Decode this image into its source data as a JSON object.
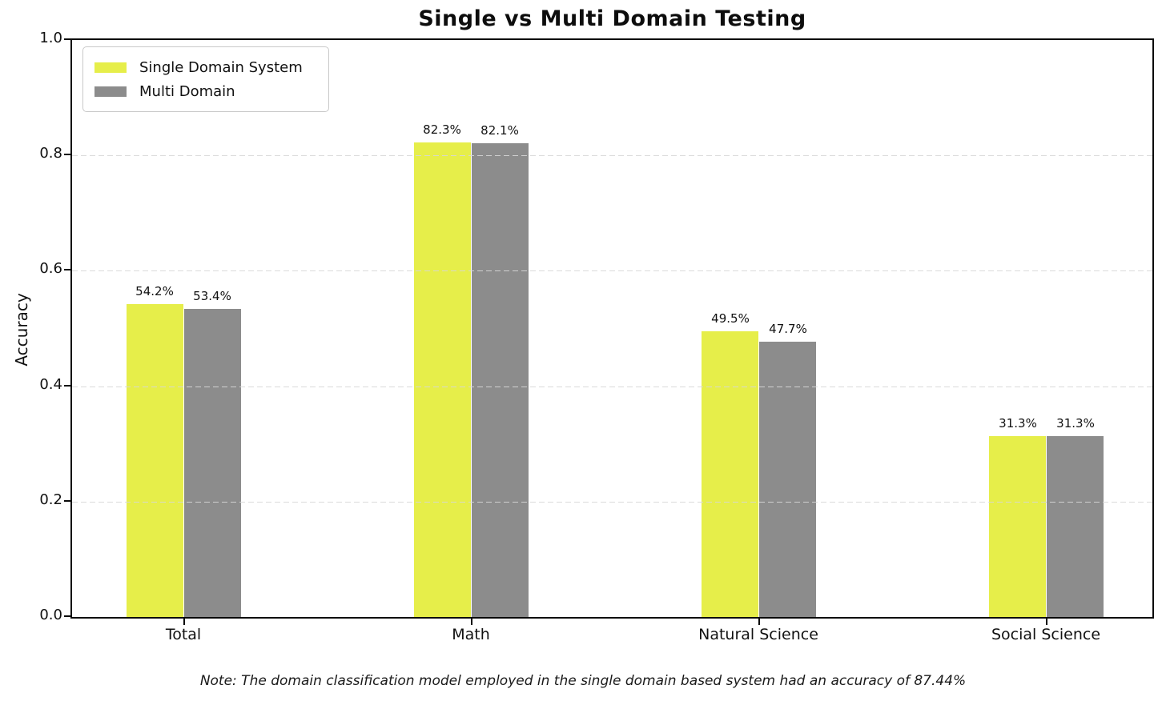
{
  "chart_data": {
    "type": "bar",
    "title": "Single vs Multi Domain Testing",
    "xlabel": "",
    "ylabel": "Accuracy",
    "ylim": [
      0.0,
      1.0
    ],
    "yticks": [
      0.0,
      0.2,
      0.4,
      0.6,
      0.8,
      1.0
    ],
    "ytick_labels": [
      "0.0",
      "0.2",
      "0.4",
      "0.6",
      "0.8",
      "1.0"
    ],
    "grid": {
      "axis": "y",
      "style": "dashed",
      "color": "#d7d7d7"
    },
    "legend": {
      "position": "upper left"
    },
    "categories": [
      "Total",
      "Math",
      "Natural Science",
      "Social Science"
    ],
    "series": [
      {
        "name": "Single Domain System",
        "color": "#e6ee4a",
        "values": [
          0.542,
          0.823,
          0.495,
          0.313
        ],
        "value_labels": [
          "54.2%",
          "82.3%",
          "49.5%",
          "31.3%"
        ]
      },
      {
        "name": "Multi Domain",
        "color": "#8c8c8c",
        "values": [
          0.534,
          0.821,
          0.477,
          0.313
        ],
        "value_labels": [
          "53.4%",
          "82.1%",
          "47.7%",
          "31.3%"
        ]
      }
    ],
    "note": "Note: The domain classification model employed in the single domain based system had an accuracy of 87.44%",
    "colors": {
      "spine": "#0a0a0a",
      "background": "#ffffff",
      "text": "#111111"
    }
  }
}
